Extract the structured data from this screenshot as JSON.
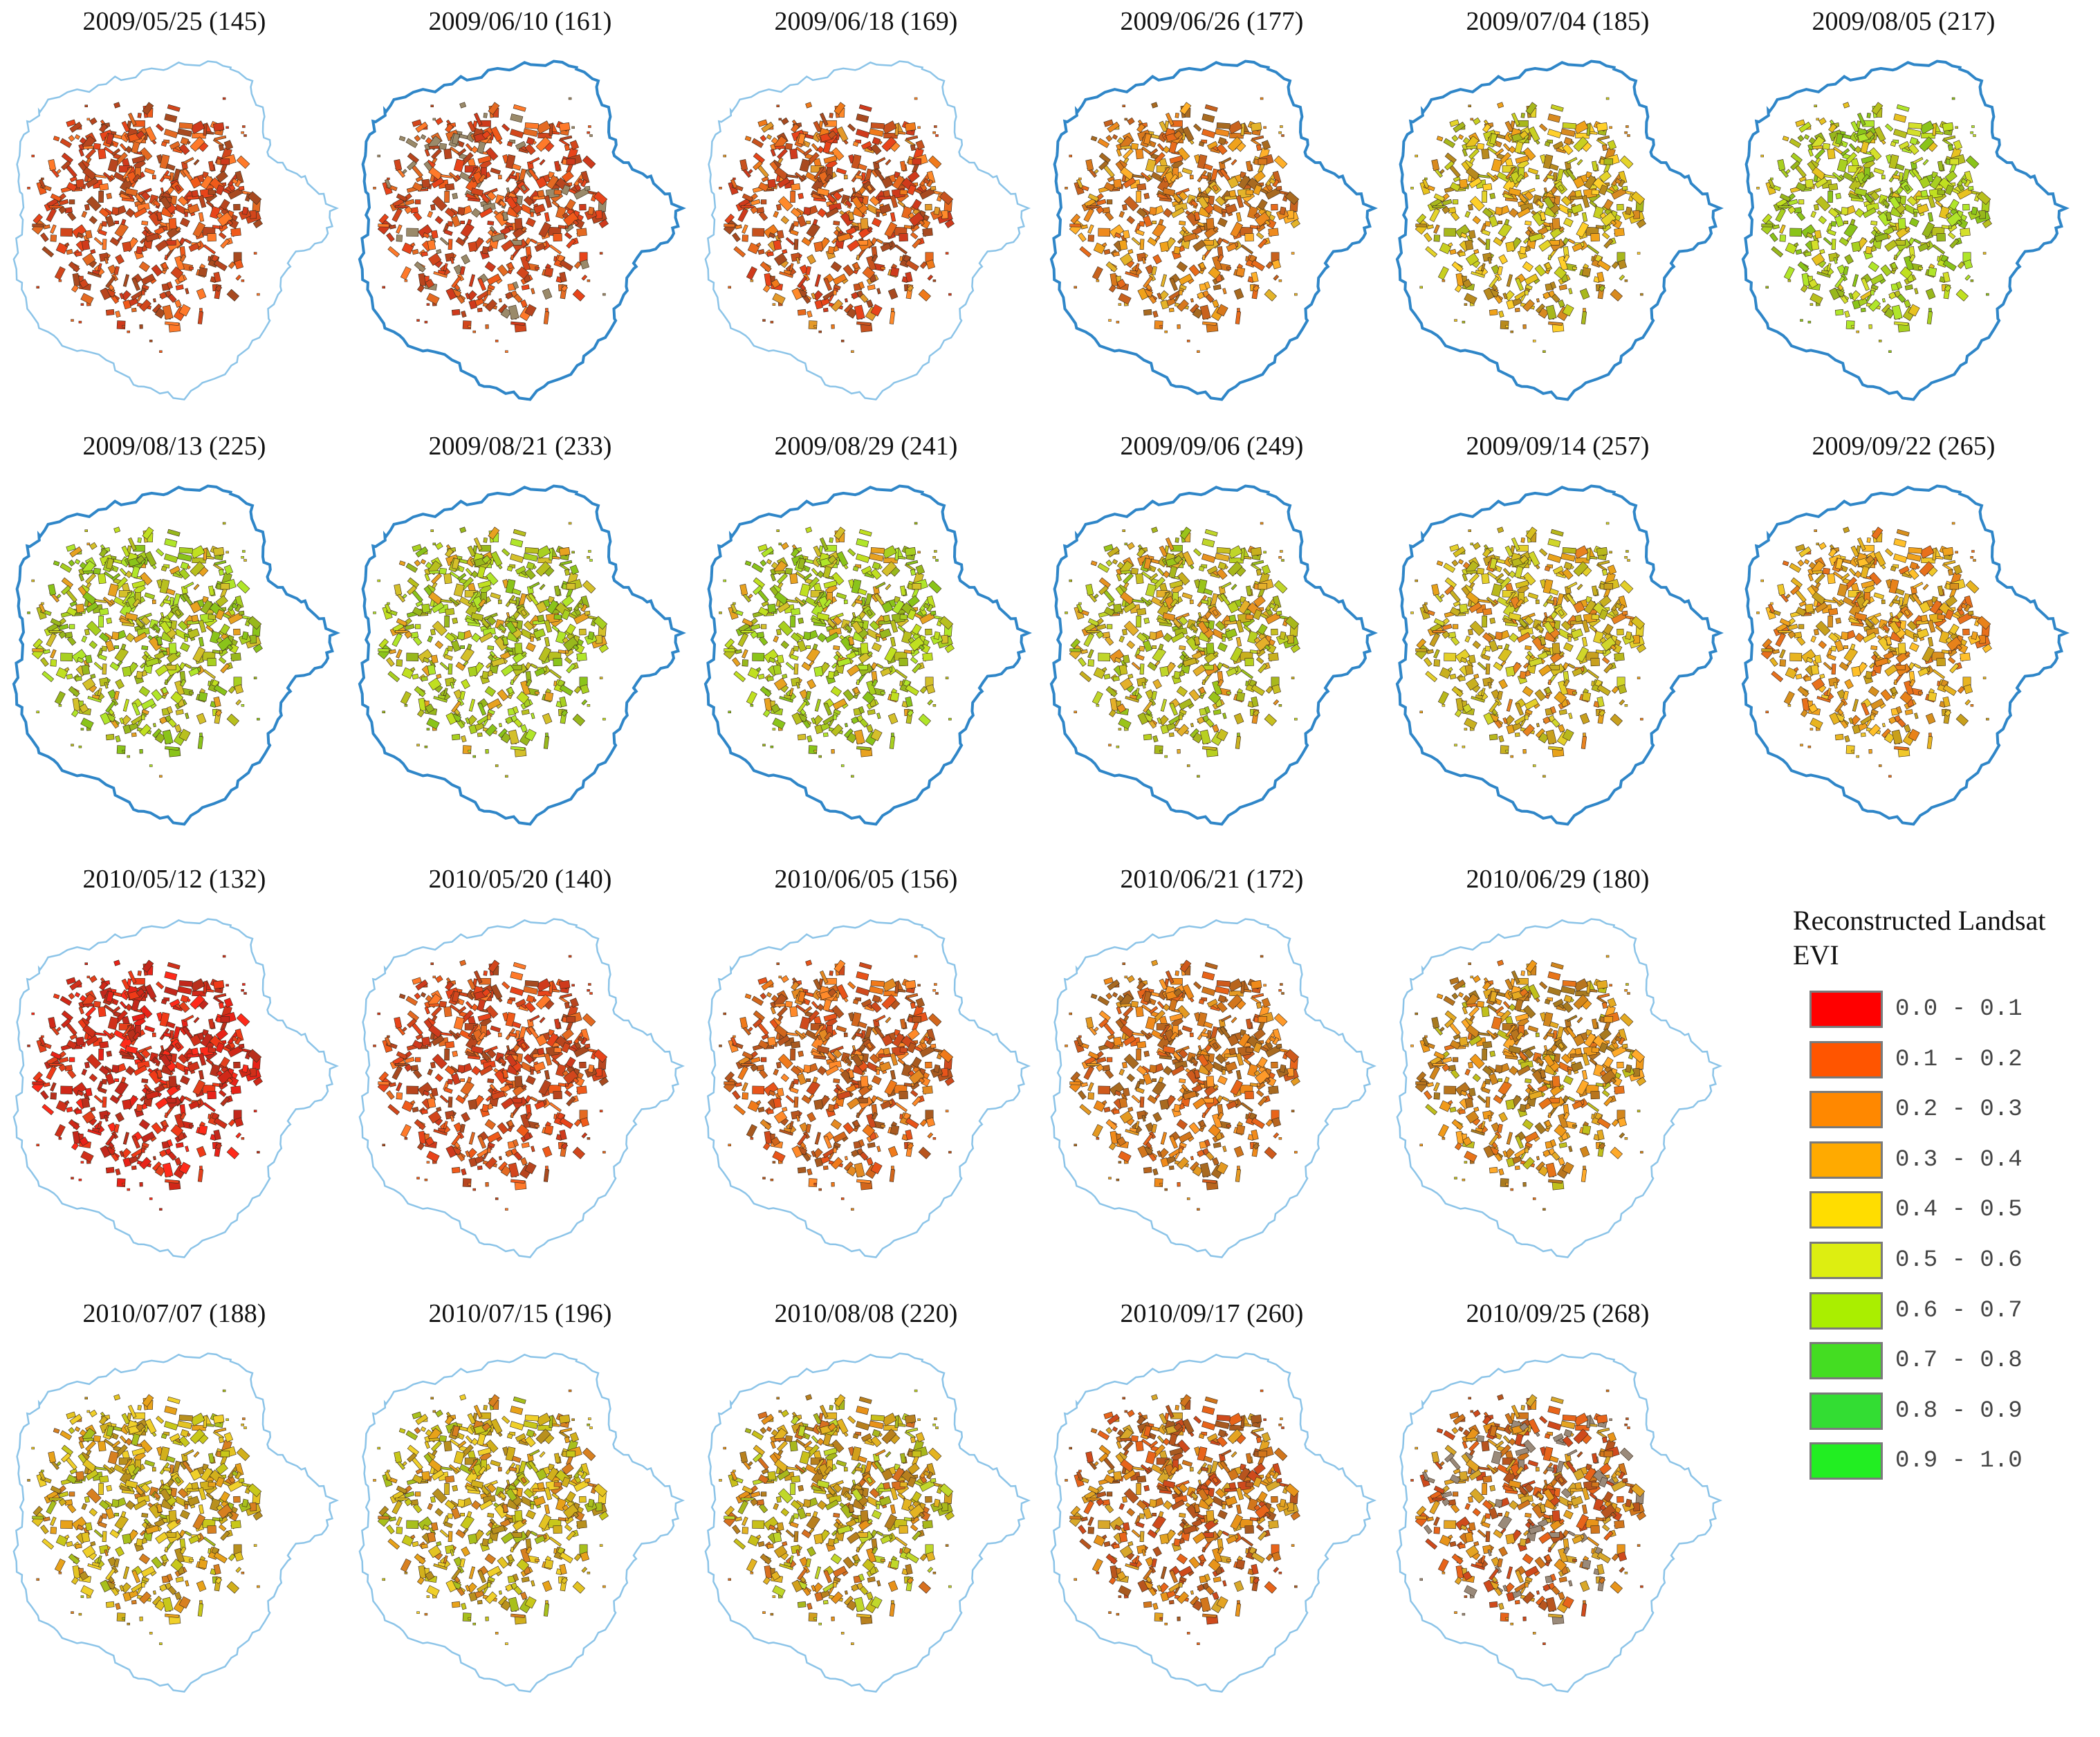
{
  "figure": {
    "panels": [
      {
        "label": "2009/05/25 (145)",
        "boundary_style": "light",
        "colors": [
          "#e8441a",
          "#d2461c",
          "#f05a1a",
          "#b8451e",
          "#e46a22",
          "#cf3a1c",
          "#a84a20",
          "#ff7a2a"
        ]
      },
      {
        "label": "2009/06/10 (161)",
        "boundary_style": "bold",
        "colors": [
          "#e8441a",
          "#d2461c",
          "#f05a1a",
          "#b8451e",
          "#e46a22",
          "#cf3a1c",
          "#9a8a6a",
          "#ff7a2a"
        ]
      },
      {
        "label": "2009/06/18 (169)",
        "boundary_style": "light",
        "colors": [
          "#e8441a",
          "#e86a1e",
          "#f07a1a",
          "#c8521e",
          "#e49a2a",
          "#cf3a1c",
          "#a84a20",
          "#ff8a2a"
        ]
      },
      {
        "label": "2009/06/26 (177)",
        "boundary_style": "bold",
        "colors": [
          "#ee8a1e",
          "#f0a21c",
          "#e86a1a",
          "#c8621e",
          "#e4b42a",
          "#d8781c",
          "#a86a20",
          "#ffb02a"
        ]
      },
      {
        "label": "2009/07/04 (185)",
        "boundary_style": "bold",
        "colors": [
          "#e8c21e",
          "#c8d020",
          "#f0a21a",
          "#b88a1e",
          "#e4d42a",
          "#a8b81c",
          "#d88a20",
          "#ffd02a"
        ]
      },
      {
        "label": "2009/08/05 (217)",
        "boundary_style": "bold",
        "colors": [
          "#a8d020",
          "#c0e020",
          "#8ac41a",
          "#b8c01e",
          "#d4e02a",
          "#98b81c",
          "#e8c220",
          "#b0e62a"
        ]
      },
      {
        "label": "2009/08/13 (225)",
        "boundary_style": "bold",
        "colors": [
          "#a8d020",
          "#c0e020",
          "#8ac41a",
          "#b8c01e",
          "#d4c02a",
          "#98b81c",
          "#e8a220",
          "#b0e62a"
        ]
      },
      {
        "label": "2009/08/21 (233)",
        "boundary_style": "bold",
        "colors": [
          "#a8d020",
          "#c0e020",
          "#8ac41a",
          "#b8c01e",
          "#d4c02a",
          "#98b81c",
          "#e8a220",
          "#b0e62a"
        ]
      },
      {
        "label": "2009/08/29 (241)",
        "boundary_style": "bold",
        "colors": [
          "#a8d020",
          "#c0e020",
          "#8ac41a",
          "#b8c01e",
          "#d4c02a",
          "#98b81c",
          "#e8a220",
          "#b0e62a"
        ]
      },
      {
        "label": "2009/09/06 (249)",
        "boundary_style": "bold",
        "colors": [
          "#b8d020",
          "#c8c020",
          "#9ac41a",
          "#c8b01e",
          "#e4b02a",
          "#a8b81c",
          "#e89220",
          "#c0d62a"
        ]
      },
      {
        "label": "2009/09/14 (257)",
        "boundary_style": "bold",
        "colors": [
          "#d8c020",
          "#c8b020",
          "#e8a21a",
          "#c8a01e",
          "#e4d02a",
          "#b8b81c",
          "#e88220",
          "#d0d62a"
        ]
      },
      {
        "label": "2009/09/22 (265)",
        "boundary_style": "bold",
        "colors": [
          "#f0a21e",
          "#e8b420",
          "#e8821a",
          "#d8901e",
          "#f0c82a",
          "#c8a01c",
          "#e8701c",
          "#ffc02a"
        ]
      },
      {
        "label": "2010/05/12 (132)",
        "boundary_style": "light",
        "colors": [
          "#e82218",
          "#d0301a",
          "#f03a18",
          "#c2281c",
          "#e4401c",
          "#b8301c",
          "#d02818",
          "#ff2a1a"
        ]
      },
      {
        "label": "2010/05/20 (140)",
        "boundary_style": "light",
        "colors": [
          "#e8441a",
          "#d2461c",
          "#f05a1a",
          "#b8451e",
          "#e46a22",
          "#cf3a1c",
          "#a84a20",
          "#ff7a2a"
        ]
      },
      {
        "label": "2010/06/05 (156)",
        "boundary_style": "light",
        "colors": [
          "#e8541a",
          "#d2661c",
          "#f07a1a",
          "#b8551e",
          "#e48a22",
          "#cf4a1c",
          "#a85a20",
          "#ff8a2a"
        ]
      },
      {
        "label": "2010/06/21 (172)",
        "boundary_style": "light",
        "colors": [
          "#e8641a",
          "#d2761c",
          "#f08a1a",
          "#b8651e",
          "#e49a22",
          "#cf5a1c",
          "#a86a20",
          "#ff9a2a"
        ]
      },
      {
        "label": "2010/06/29 (180)",
        "boundary_style": "light",
        "colors": [
          "#e8741a",
          "#d2861c",
          "#f09a1a",
          "#b8751e",
          "#e4aa22",
          "#c0c01c",
          "#a87a20",
          "#ffaa2a"
        ]
      },
      {
        "label": "2010/07/07 (188)",
        "boundary_style": "light",
        "colors": [
          "#e8a21a",
          "#d2b01c",
          "#c8c81a",
          "#b8901e",
          "#e4c422",
          "#a8c01c",
          "#d88020",
          "#f0d02a"
        ]
      },
      {
        "label": "2010/07/15 (196)",
        "boundary_style": "light",
        "colors": [
          "#e8a21a",
          "#d2b01c",
          "#c8c81a",
          "#b8901e",
          "#e4c422",
          "#a8c01c",
          "#d88020",
          "#f0d02a"
        ]
      },
      {
        "label": "2010/08/08 (220)",
        "boundary_style": "light",
        "colors": [
          "#e8921a",
          "#d2a01c",
          "#c8c01a",
          "#b8801e",
          "#e4b422",
          "#a8b81c",
          "#d87020",
          "#c0d82a"
        ]
      },
      {
        "label": "2010/09/17 (260)",
        "boundary_style": "light",
        "colors": [
          "#e8641a",
          "#d2761c",
          "#e8941a",
          "#b8551e",
          "#e4a422",
          "#cf4a1c",
          "#a85a20",
          "#d8a82a"
        ]
      },
      {
        "label": "2010/09/25 (268)",
        "boundary_style": "light",
        "colors": [
          "#e8641a",
          "#d2761c",
          "#e8941a",
          "#b8551e",
          "#e4a422",
          "#cf4a1c",
          "#9a8a7a",
          "#d8a82a"
        ]
      }
    ],
    "boundary_colors": {
      "bold": "#2f86c8",
      "light": "#8cc4e8"
    },
    "legend": {
      "title_line1": "Reconstructed Landsat",
      "title_line2": "EVI",
      "items": [
        {
          "range": "0.0 - 0.1",
          "color": "#ff0000"
        },
        {
          "range": "0.1 - 0.2",
          "color": "#ff5500"
        },
        {
          "range": "0.2 - 0.3",
          "color": "#ff8800"
        },
        {
          "range": "0.3 - 0.4",
          "color": "#ffaa00"
        },
        {
          "range": "0.4 - 0.5",
          "color": "#ffdd00"
        },
        {
          "range": "0.5 - 0.6",
          "color": "#ddee11"
        },
        {
          "range": "0.6 - 0.7",
          "color": "#aaee00"
        },
        {
          "range": "0.7 - 0.8",
          "color": "#44dd22"
        },
        {
          "range": "0.8 - 0.9",
          "color": "#33dd33"
        },
        {
          "range": "0.9 - 1.0",
          "color": "#22ee22"
        }
      ]
    }
  }
}
